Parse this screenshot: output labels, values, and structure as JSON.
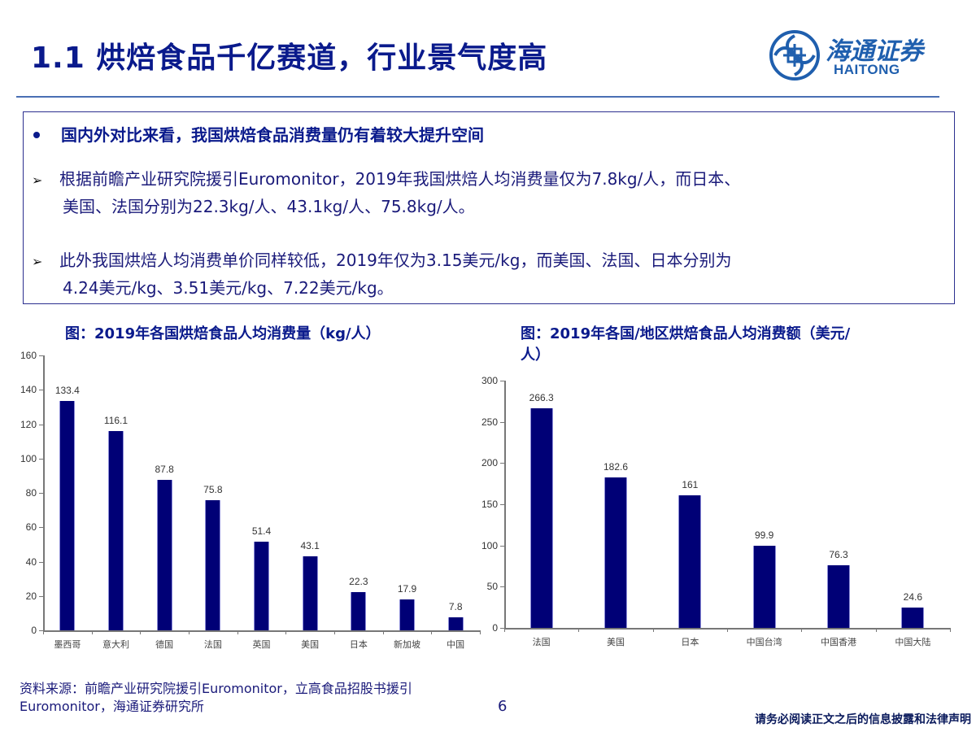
{
  "header": {
    "title": "1.1 烘焙食品千亿赛道，行业景气度高",
    "logo": {
      "cn": "海通证券",
      "en": "HAITONG",
      "icon": "haitong-logo-icon",
      "color": "#1f5fae"
    }
  },
  "summary_box": {
    "headline": "国内外对比来看，我国烘焙食品消费量仍有着较大提升空间",
    "points": [
      {
        "line1": "根据前瞻产业研究院援引Euromonitor，2019年我国烘焙人均消费量仅为7.8kg/人，而日本、",
        "line2": "美国、法国分别为22.3kg/人、43.1kg/人、75.8kg/人。"
      },
      {
        "line1": "此外我国烘焙人均消费单价同样较低，2019年仅为3.15美元/kg，而美国、法国、日本分别为",
        "line2": "4.24美元/kg、3.51美元/kg、7.22美元/kg。"
      }
    ],
    "arrow_glyph": "➢"
  },
  "chart_data": [
    {
      "type": "bar",
      "title": "图：2019年各国烘焙食品人均消费量（kg/人）",
      "xlabel": "",
      "ylabel": "",
      "categories": [
        "墨西哥",
        "意大利",
        "德国",
        "法国",
        "英国",
        "美国",
        "日本",
        "新加坡",
        "中国"
      ],
      "values": [
        133.4,
        116.1,
        87.8,
        75.8,
        51.4,
        43.1,
        22.3,
        17.9,
        7.8
      ],
      "value_labels": [
        "133.4",
        "116.1",
        "87.8",
        "75.8",
        "51.4",
        "43.1",
        "22.3",
        "17.9",
        "7.8"
      ],
      "ylim": [
        0,
        160
      ],
      "yticks": [
        0,
        20,
        40,
        60,
        80,
        100,
        120,
        140,
        160
      ],
      "grid": false,
      "legend": null,
      "bar_color": "#000076"
    },
    {
      "type": "bar",
      "title": "图：2019年各国/地区烘焙食品人均消费额（美元/人）",
      "title_line1": "图：2019年各国/地区烘焙食品人均消费额（美元/",
      "title_line2": "人）",
      "xlabel": "",
      "ylabel": "",
      "categories": [
        "法国",
        "美国",
        "日本",
        "中国台湾",
        "中国香港",
        "中国大陆"
      ],
      "values": [
        266.3,
        182.6,
        161,
        99.9,
        76.3,
        24.6
      ],
      "value_labels": [
        "266.3",
        "182.6",
        "161",
        "99.9",
        "76.3",
        "24.6"
      ],
      "ylim": [
        0,
        300
      ],
      "yticks": [
        0,
        50,
        100,
        150,
        200,
        250,
        300
      ],
      "grid": false,
      "legend": null,
      "bar_color": "#000076"
    }
  ],
  "footer": {
    "source_line1": "资料来源：前瞻产业研究院援引Euromonitor，立高食品招股书援引",
    "source_line2": "Euromonitor，海通证券研究所",
    "page_number": "6",
    "disclaimer": "请务必阅读正文之后的信息披露和法律声明"
  }
}
